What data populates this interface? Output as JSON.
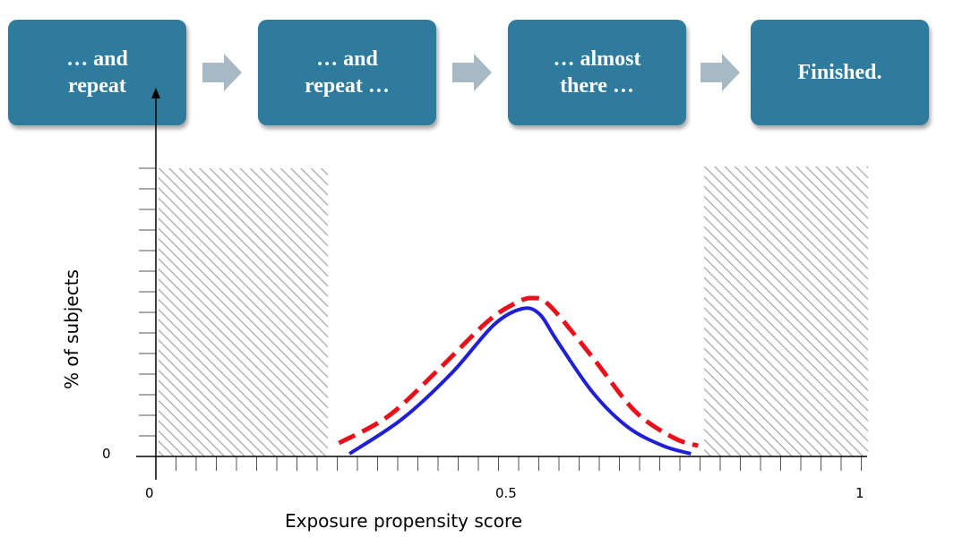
{
  "steps": [
    {
      "label": "… and\nrepeat"
    },
    {
      "label": "… and\nrepeat …"
    },
    {
      "label": "… almost\nthere …"
    },
    {
      "label": "Finished."
    }
  ],
  "colors": {
    "step_fill": "#2e7b9e",
    "arrow_fill": "#a8b9c6",
    "hatch": "#a6a6a6",
    "treated_line": "#1f1fd6",
    "untreated_line": "#e8101a"
  },
  "chart_data": {
    "type": "line",
    "xlabel": "Exposure propensity score",
    "ylabel": "% of  subjects",
    "x_ticks": [
      "0",
      "0.5",
      "1"
    ],
    "y_ticks": [
      "0"
    ],
    "xlim": [
      0,
      1
    ],
    "excluded_regions": [
      [
        0,
        0.245
      ],
      [
        0.78,
        1.0
      ]
    ],
    "series": [
      {
        "style": "solid",
        "color": "#1f1fd6",
        "x": [
          0.275,
          0.35,
          0.42,
          0.48,
          0.52,
          0.545,
          0.57,
          0.62,
          0.67,
          0.72,
          0.76
        ],
        "y": [
          0.01,
          0.14,
          0.31,
          0.49,
          0.55,
          0.53,
          0.43,
          0.24,
          0.11,
          0.04,
          0.01
        ]
      },
      {
        "style": "dashed",
        "color": "#e8101a",
        "x": [
          0.26,
          0.33,
          0.4,
          0.47,
          0.51,
          0.535,
          0.56,
          0.62,
          0.68,
          0.735,
          0.77
        ],
        "y": [
          0.05,
          0.15,
          0.32,
          0.5,
          0.57,
          0.59,
          0.56,
          0.37,
          0.17,
          0.07,
          0.04
        ]
      }
    ]
  }
}
